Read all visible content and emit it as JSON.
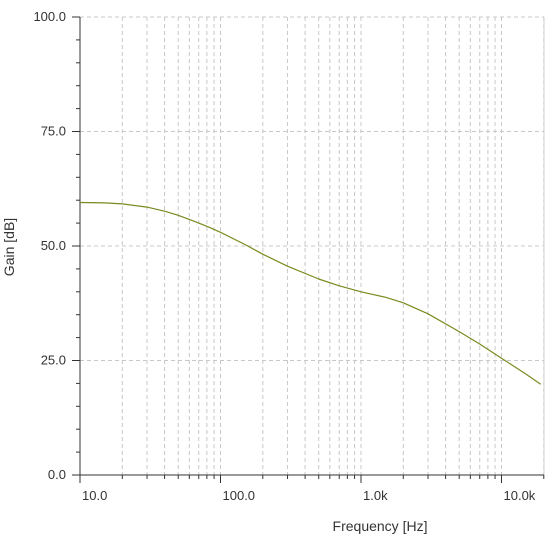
{
  "chart_data": {
    "type": "line",
    "title": "",
    "xlabel": "Frequency [Hz]",
    "ylabel": "Gain [dB]",
    "x_scale": "log",
    "xlim": [
      10,
      20000
    ],
    "ylim": [
      0,
      100
    ],
    "grid": true,
    "x_tick_labels": [
      {
        "value": 10,
        "label": "10.0"
      },
      {
        "value": 100,
        "label": "100.0"
      },
      {
        "value": 1000,
        "label": "1.0k"
      },
      {
        "value": 10000,
        "label": "10.0k"
      }
    ],
    "y_tick_labels": [
      {
        "value": 0,
        "label": "0.0"
      },
      {
        "value": 25,
        "label": "25.0"
      },
      {
        "value": 50,
        "label": "50.0"
      },
      {
        "value": 75,
        "label": "75.0"
      },
      {
        "value": 100,
        "label": "100.0"
      }
    ],
    "series": [
      {
        "color": "#7a8a1e",
        "x": [
          10,
          15,
          20,
          30,
          40,
          50,
          60,
          70,
          80,
          100,
          150,
          200,
          300,
          500,
          700,
          1000,
          1500,
          2000,
          3000,
          5000,
          7000,
          10000,
          15000,
          19000
        ],
        "y": [
          59.5,
          59.4,
          59.2,
          58.5,
          57.6,
          56.7,
          55.8,
          55.0,
          54.3,
          53.0,
          50.3,
          48.2,
          45.6,
          42.8,
          41.3,
          40.0,
          38.8,
          37.6,
          35.2,
          31.3,
          28.6,
          25.5,
          22.0,
          19.8
        ]
      }
    ]
  }
}
